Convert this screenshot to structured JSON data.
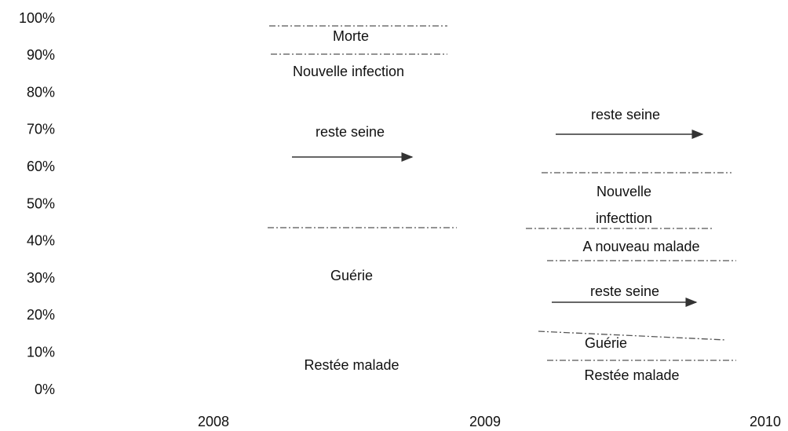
{
  "y_axis": {
    "labels": [
      "100%",
      "90%",
      "80%",
      "70%",
      "60%",
      "50%",
      "40%",
      "30%",
      "20%",
      "10%",
      "0%"
    ]
  },
  "x_axis": {
    "labels": [
      "2008",
      "2009",
      "2010"
    ]
  },
  "regions": [
    {
      "label": "Morte"
    },
    {
      "label": "Nouvelle infection"
    },
    {
      "label": "reste seine"
    },
    {
      "label": "Guérie"
    },
    {
      "label": "Restée malade"
    },
    {
      "label": "reste seine"
    },
    {
      "label": "Nouvelle"
    },
    {
      "label": "infecttion"
    },
    {
      "label": "A nouveau malade"
    },
    {
      "label": "reste seine"
    },
    {
      "label": "Guérie"
    },
    {
      "label": "Restée malade"
    }
  ]
}
